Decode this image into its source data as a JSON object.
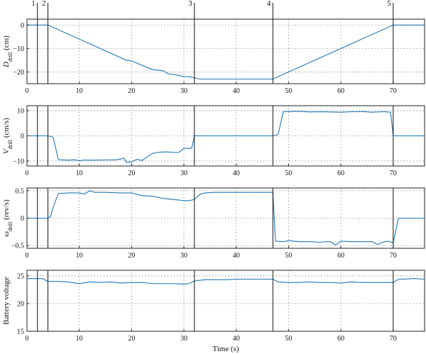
{
  "chart_data": [
    {
      "type": "line",
      "ylabel_main": "D",
      "ylabel_sub": "drill",
      "ylabel_unit": " (cm)",
      "xlim": [
        0,
        76
      ],
      "ylim": [
        -25,
        2.5
      ],
      "yticks": [
        0,
        -10,
        -20
      ],
      "xticks": [
        0,
        10,
        20,
        30,
        40,
        50,
        60,
        70
      ],
      "grid": true,
      "series": [
        {
          "x": [
            0,
            4,
            19,
            20,
            24,
            25,
            26,
            27,
            28,
            29,
            30,
            31,
            32,
            33,
            47,
            70,
            76
          ],
          "y": [
            0,
            0,
            -15,
            -15.3,
            -19,
            -19.2,
            -19.5,
            -20.8,
            -21,
            -21.5,
            -22,
            -22,
            -22.5,
            -23,
            -23,
            0,
            0
          ]
        }
      ]
    },
    {
      "type": "line",
      "ylabel_main": "V",
      "ylabel_sub": "drill",
      "ylabel_unit": " (cm/s)",
      "xlim": [
        0,
        76
      ],
      "ylim": [
        -12,
        12
      ],
      "yticks": [
        10,
        0,
        -10
      ],
      "xticks": [
        0,
        10,
        20,
        30,
        40,
        50,
        60,
        70
      ],
      "grid": true,
      "series": [
        {
          "x": [
            0,
            4,
            5,
            6,
            8,
            9,
            10,
            11,
            12,
            15,
            17,
            18,
            18.5,
            19,
            20,
            21,
            22,
            23,
            24,
            25,
            26,
            27,
            28,
            29,
            30,
            31,
            31.5,
            32,
            33,
            47,
            48,
            49,
            52,
            54,
            56,
            58,
            60,
            62,
            64,
            66,
            68,
            69,
            69.5,
            70,
            76
          ],
          "y": [
            0,
            0,
            -0.5,
            -9.5,
            -9.7,
            -9.5,
            -9.9,
            -9.6,
            -9.7,
            -9.6,
            -9.5,
            -9.2,
            -8.8,
            -10.5,
            -10.4,
            -9.3,
            -9.8,
            -8.3,
            -7,
            -6.6,
            -6.4,
            -6.4,
            -6.6,
            -6.6,
            -5,
            -5,
            -4.8,
            0,
            0,
            0,
            0.5,
            9.6,
            9.8,
            9.5,
            9.6,
            9.5,
            9.4,
            9.6,
            9.7,
            9.4,
            9.6,
            9.5,
            9.4,
            0,
            0
          ]
        }
      ]
    },
    {
      "type": "line",
      "ylabel_main": "ω",
      "ylabel_sub": "drill",
      "ylabel_unit": " (rev/s)",
      "xlim": [
        0,
        76
      ],
      "ylim": [
        -0.55,
        0.55
      ],
      "yticks": [
        0.5,
        0,
        -0.5
      ],
      "xticks": [
        0,
        10,
        20,
        30,
        40,
        50,
        60,
        70
      ],
      "grid": true,
      "series": [
        {
          "x": [
            0,
            4,
            4.5,
            5,
            6,
            8,
            10,
            11,
            12,
            13,
            15,
            18,
            20,
            22,
            24,
            26,
            28,
            30,
            31,
            32,
            33,
            34,
            36,
            38,
            40,
            42,
            44,
            46,
            47,
            47.5,
            49,
            50,
            52,
            54,
            56,
            57,
            58,
            59,
            60,
            62,
            64,
            66,
            67,
            68,
            69,
            70,
            71,
            76
          ],
          "y": [
            0,
            0,
            0.03,
            0.2,
            0.45,
            0.46,
            0.46,
            0.44,
            0.5,
            0.47,
            0.47,
            0.46,
            0.46,
            0.41,
            0.4,
            0.36,
            0.34,
            0.32,
            0.32,
            0.34,
            0.43,
            0.46,
            0.47,
            0.47,
            0.47,
            0.47,
            0.47,
            0.47,
            0.47,
            -0.42,
            -0.43,
            -0.41,
            -0.43,
            -0.43,
            -0.44,
            -0.43,
            -0.43,
            -0.49,
            -0.42,
            -0.43,
            -0.43,
            -0.43,
            -0.48,
            -0.44,
            -0.42,
            -0.45,
            0,
            0
          ]
        }
      ]
    },
    {
      "type": "line",
      "ylabel_main": "Battery voltage",
      "ylabel_sub": "",
      "ylabel_unit": "",
      "xlabel": "Time (s)",
      "xlim": [
        0,
        76
      ],
      "ylim": [
        15,
        26
      ],
      "yticks": [
        25,
        20,
        15
      ],
      "xticks": [
        0,
        10,
        20,
        30,
        40,
        50,
        60,
        70
      ],
      "grid": true,
      "series": [
        {
          "x": [
            0,
            3,
            4,
            6,
            8,
            10,
            12,
            14,
            16,
            18,
            20,
            22,
            24,
            26,
            28,
            30,
            31,
            32,
            34,
            36,
            38,
            40,
            42,
            44,
            46,
            47,
            48,
            50,
            52,
            54,
            56,
            58,
            60,
            62,
            64,
            66,
            68,
            70,
            71,
            72,
            74,
            76
          ],
          "y": [
            24.5,
            24.5,
            24,
            24,
            23.9,
            23.6,
            23.9,
            23.8,
            23.9,
            23.7,
            23.8,
            23.8,
            23.6,
            23.6,
            23.6,
            23.5,
            23.6,
            24.1,
            24.3,
            24.3,
            24.3,
            24.4,
            24.4,
            24.4,
            24.4,
            24.4,
            23.9,
            23.8,
            23.8,
            23.9,
            23.8,
            23.8,
            23.7,
            23.9,
            23.8,
            23.8,
            23.8,
            23.8,
            24.4,
            24.4,
            24.5,
            24.4
          ]
        }
      ]
    }
  ],
  "markers": {
    "times": [
      2,
      4,
      32,
      47,
      70
    ],
    "labels": [
      "1",
      "2",
      "3",
      "4",
      "5"
    ]
  },
  "colors": {
    "series": "#1f77b4",
    "axis": "#222222",
    "marker": "#111111"
  }
}
